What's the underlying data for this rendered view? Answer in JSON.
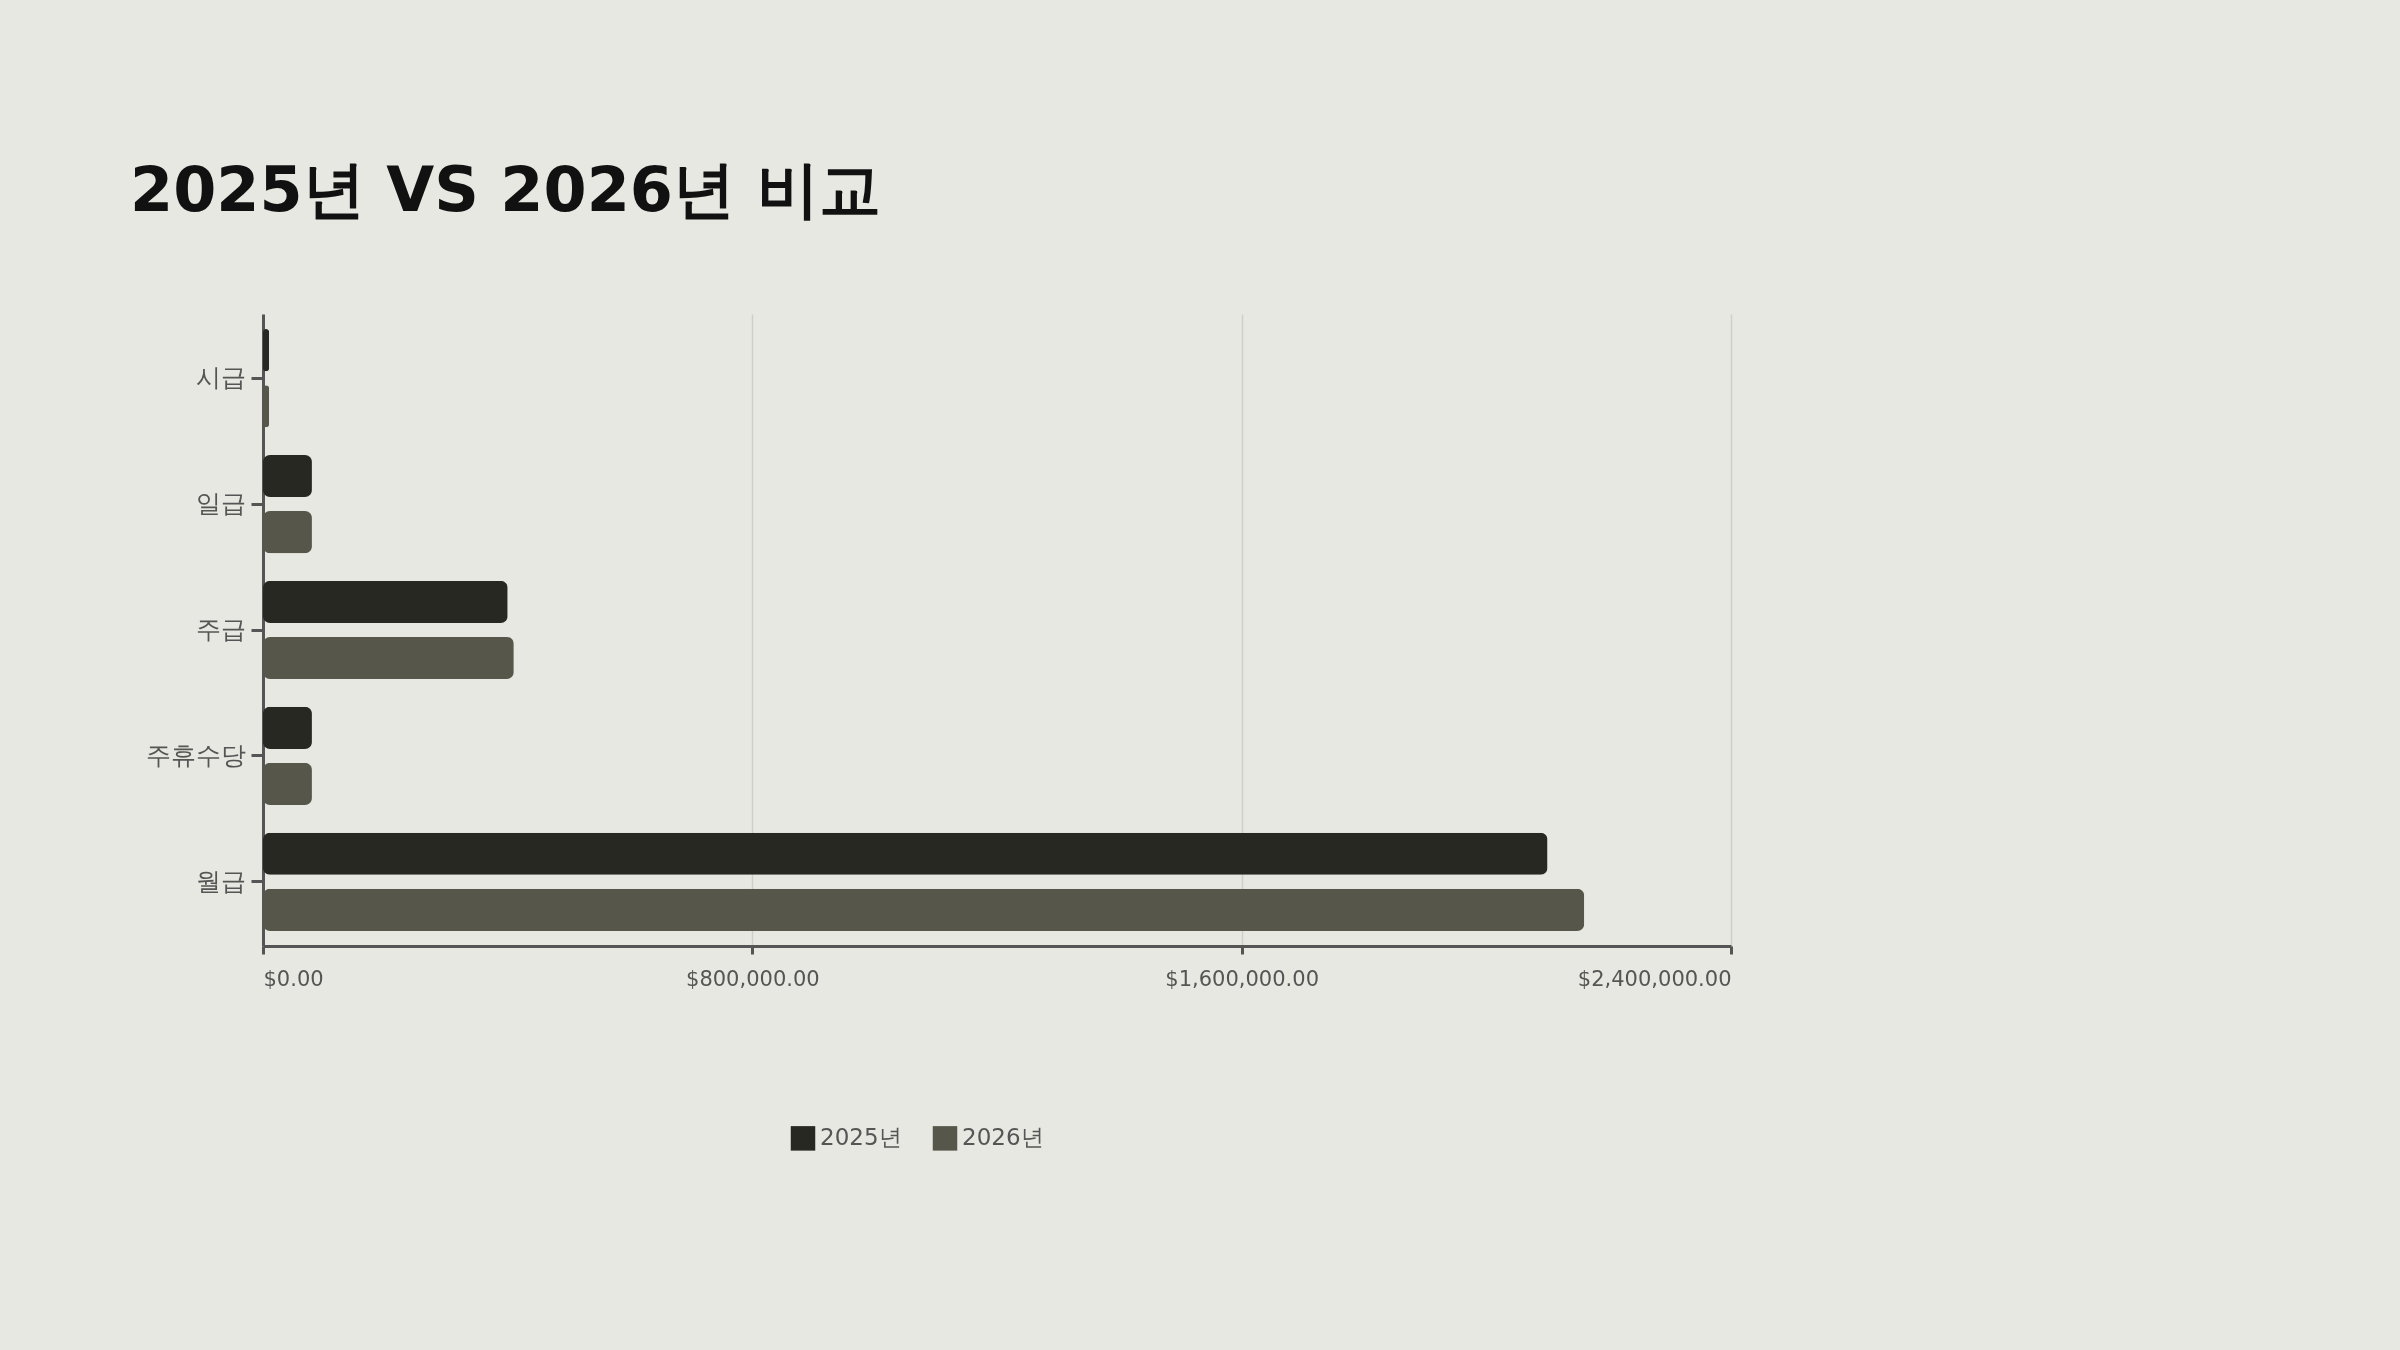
{
  "chart_data": {
    "type": "bar",
    "orientation": "horizontal",
    "title": "2025년 VS 2026년 비교",
    "categories": [
      "시급",
      "일급",
      "주급",
      "주휴수당",
      "월급"
    ],
    "series": [
      {
        "name": "2025년",
        "color": "#272822",
        "values": [
          10000,
          80000,
          400000,
          80000,
          2100000
        ]
      },
      {
        "name": "2026년",
        "color": "#56574a",
        "values": [
          10000,
          80000,
          410000,
          80000,
          2160000
        ]
      }
    ],
    "xlim": [
      0,
      2400000
    ],
    "xticks": [
      {
        "value": 0,
        "label": "$0.00"
      },
      {
        "value": 800000,
        "label": "$800,000.00"
      },
      {
        "value": 1600000,
        "label": "$1,600,000.00"
      },
      {
        "value": 2400000,
        "label": "$2,400,000.00"
      }
    ],
    "grid": "x",
    "legend": "bottom"
  }
}
